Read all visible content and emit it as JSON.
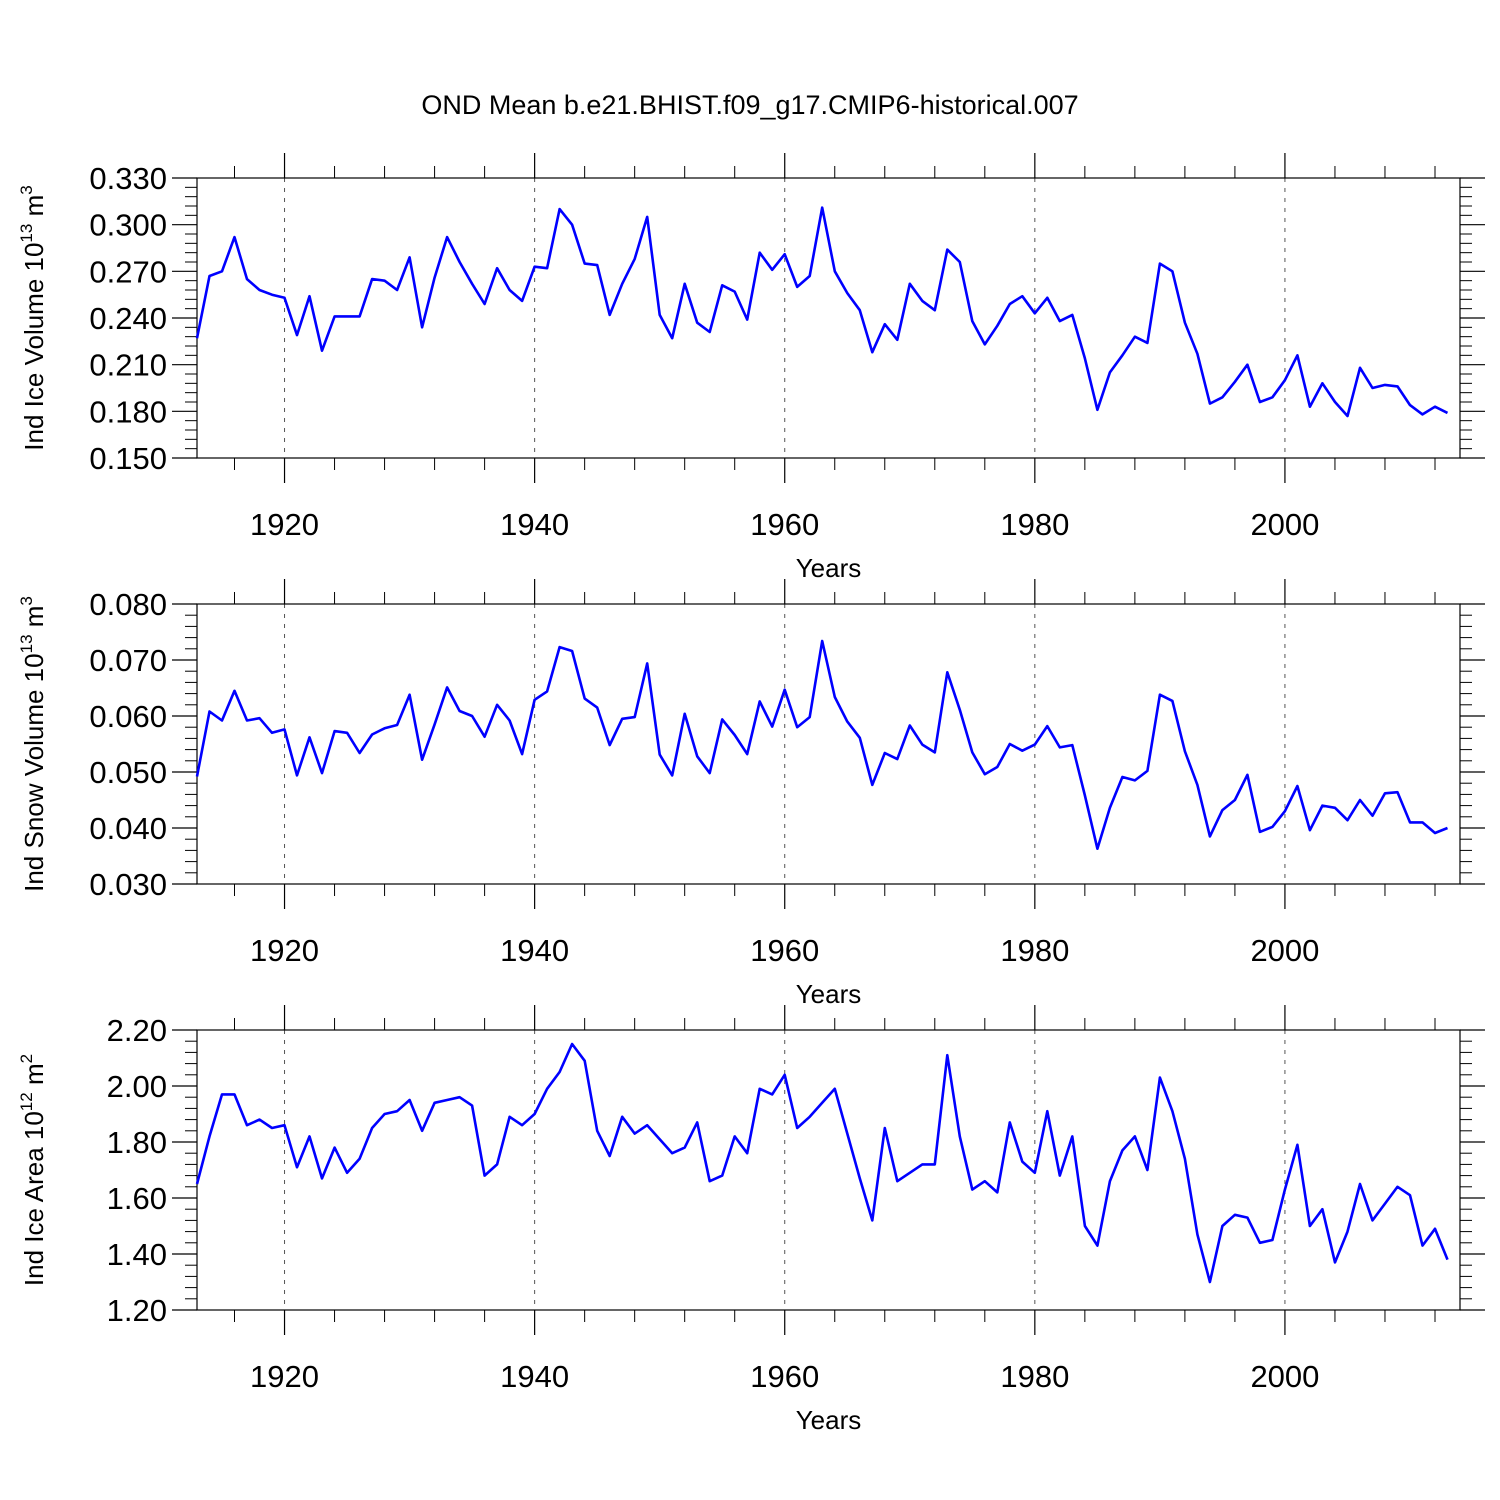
{
  "title": "OND Mean b.e21.BHIST.f09_g17.CMIP6-historical.007",
  "colors": {
    "line": "#0000ff",
    "axis": "#000000",
    "grid": "#555555"
  },
  "chart_data": [
    {
      "type": "line",
      "title": "",
      "xlabel": "Years",
      "ylabel": "Ind Ice Volume 10",
      "ylabel_exp": "13",
      "ylabel_unit": " m",
      "ylabel_unit_exp": "3",
      "xlim": [
        1913,
        2014
      ],
      "ylim": [
        0.15,
        0.33
      ],
      "yticks": [
        "0.150",
        "0.180",
        "0.210",
        "0.240",
        "0.270",
        "0.300",
        "0.330"
      ],
      "xticks": [
        "1920",
        "1940",
        "1960",
        "1980",
        "2000"
      ],
      "grid": "x-dashed",
      "x_start": 1913,
      "values": [
        0.227,
        0.267,
        0.27,
        0.292,
        0.265,
        0.258,
        0.255,
        0.253,
        0.229,
        0.254,
        0.219,
        0.241,
        0.241,
        0.241,
        0.265,
        0.264,
        0.258,
        0.279,
        0.234,
        0.266,
        0.292,
        0.276,
        0.262,
        0.249,
        0.272,
        0.258,
        0.251,
        0.273,
        0.272,
        0.31,
        0.3,
        0.275,
        0.274,
        0.242,
        0.262,
        0.278,
        0.305,
        0.242,
        0.227,
        0.262,
        0.237,
        0.231,
        0.261,
        0.257,
        0.239,
        0.282,
        0.271,
        0.281,
        0.26,
        0.267,
        0.311,
        0.27,
        0.256,
        0.245,
        0.218,
        0.236,
        0.226,
        0.262,
        0.251,
        0.245,
        0.284,
        0.276,
        0.238,
        0.223,
        0.235,
        0.249,
        0.254,
        0.243,
        0.253,
        0.238,
        0.242,
        0.214,
        0.181,
        0.205,
        0.216,
        0.228,
        0.224,
        0.275,
        0.27,
        0.237,
        0.217,
        0.185,
        0.189,
        0.199,
        0.21,
        0.186,
        0.189,
        0.2,
        0.216,
        0.183,
        0.198,
        0.186,
        0.177,
        0.208,
        0.195,
        0.197,
        0.196,
        0.184,
        0.178,
        0.183,
        0.179
      ]
    },
    {
      "type": "line",
      "title": "",
      "xlabel": "Years",
      "ylabel": "Ind Snow Volume 10",
      "ylabel_exp": "13",
      "ylabel_unit": " m",
      "ylabel_unit_exp": "3",
      "xlim": [
        1913,
        2014
      ],
      "ylim": [
        0.03,
        0.08
      ],
      "yticks": [
        "0.030",
        "0.040",
        "0.050",
        "0.060",
        "0.070",
        "0.080"
      ],
      "xticks": [
        "1920",
        "1940",
        "1960",
        "1980",
        "2000"
      ],
      "grid": "x-dashed",
      "x_start": 1913,
      "values": [
        0.0492,
        0.0608,
        0.0592,
        0.0645,
        0.0592,
        0.0596,
        0.057,
        0.0576,
        0.0494,
        0.0562,
        0.0498,
        0.0573,
        0.057,
        0.0534,
        0.0567,
        0.0578,
        0.0584,
        0.0638,
        0.0522,
        0.0585,
        0.0651,
        0.0609,
        0.06,
        0.0563,
        0.062,
        0.0592,
        0.0532,
        0.0629,
        0.0644,
        0.0723,
        0.0716,
        0.0631,
        0.0615,
        0.0548,
        0.0595,
        0.0598,
        0.0694,
        0.0531,
        0.0494,
        0.0604,
        0.0528,
        0.0498,
        0.0594,
        0.0566,
        0.0532,
        0.0626,
        0.0581,
        0.0647,
        0.058,
        0.0598,
        0.0734,
        0.0634,
        0.059,
        0.0561,
        0.0477,
        0.0534,
        0.0523,
        0.0583,
        0.0549,
        0.0535,
        0.0678,
        0.0611,
        0.0535,
        0.0496,
        0.0509,
        0.055,
        0.0538,
        0.0549,
        0.0582,
        0.0544,
        0.0548,
        0.0458,
        0.0363,
        0.0436,
        0.0491,
        0.0485,
        0.0502,
        0.0638,
        0.0627,
        0.0537,
        0.0477,
        0.0385,
        0.0432,
        0.045,
        0.0495,
        0.0393,
        0.0402,
        0.043,
        0.0475,
        0.0396,
        0.044,
        0.0436,
        0.0414,
        0.045,
        0.0422,
        0.0462,
        0.0464,
        0.041,
        0.041,
        0.0391,
        0.04
      ]
    },
    {
      "type": "line",
      "title": "",
      "xlabel": "Years",
      "ylabel": "Ind Ice Area 10",
      "ylabel_exp": "12",
      "ylabel_unit": " m",
      "ylabel_unit_exp": "2",
      "xlim": [
        1913,
        2014
      ],
      "ylim": [
        1.2,
        2.2
      ],
      "yticks": [
        "1.20",
        "1.40",
        "1.60",
        "1.80",
        "2.00",
        "2.20"
      ],
      "xticks": [
        "1920",
        "1940",
        "1960",
        "1980",
        "2000"
      ],
      "grid": "x-dashed",
      "x_start": 1913,
      "values": [
        1.65,
        1.82,
        1.97,
        1.97,
        1.86,
        1.88,
        1.85,
        1.86,
        1.71,
        1.82,
        1.67,
        1.78,
        1.69,
        1.74,
        1.85,
        1.9,
        1.91,
        1.95,
        1.84,
        1.94,
        1.95,
        1.96,
        1.93,
        1.68,
        1.72,
        1.89,
        1.86,
        1.9,
        1.99,
        2.05,
        2.15,
        2.09,
        1.84,
        1.75,
        1.89,
        1.83,
        1.86,
        1.81,
        1.76,
        1.78,
        1.87,
        1.66,
        1.68,
        1.82,
        1.76,
        1.99,
        1.97,
        2.04,
        1.85,
        1.89,
        1.94,
        1.99,
        1.83,
        1.67,
        1.52,
        1.85,
        1.66,
        1.69,
        1.72,
        1.72,
        2.11,
        1.82,
        1.63,
        1.66,
        1.62,
        1.87,
        1.73,
        1.69,
        1.91,
        1.68,
        1.82,
        1.5,
        1.43,
        1.66,
        1.77,
        1.82,
        1.7,
        2.03,
        1.91,
        1.74,
        1.47,
        1.3,
        1.5,
        1.54,
        1.53,
        1.44,
        1.45,
        1.63,
        1.79,
        1.5,
        1.56,
        1.37,
        1.48,
        1.65,
        1.52,
        1.58,
        1.64,
        1.61,
        1.43,
        1.49,
        1.38
      ]
    }
  ]
}
